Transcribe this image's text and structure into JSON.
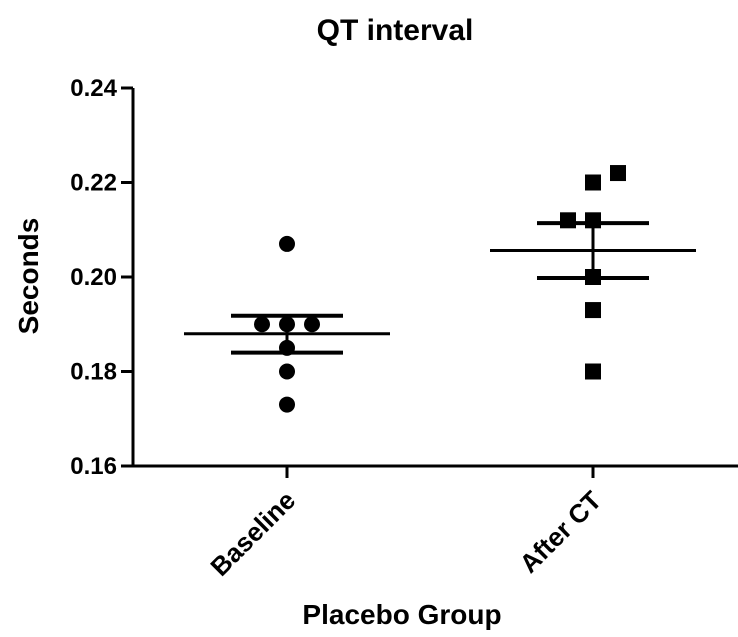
{
  "chart_data": {
    "type": "scatter",
    "title": "QT interval",
    "xlabel": "Placebo Group",
    "ylabel": "Seconds",
    "ylim": [
      0.16,
      0.24
    ],
    "yticks": [
      "0.16",
      "0.18",
      "0.20",
      "0.22",
      "0.24"
    ],
    "categories": [
      "Baseline",
      "After CT"
    ],
    "grid": false,
    "series": [
      {
        "category": "Baseline",
        "marker": "circle",
        "points": [
          {
            "offset": 0.0,
            "y": 0.207
          },
          {
            "offset": -1.0,
            "y": 0.19
          },
          {
            "offset": 0.0,
            "y": 0.19
          },
          {
            "offset": 1.0,
            "y": 0.19
          },
          {
            "offset": 0.0,
            "y": 0.185
          },
          {
            "offset": 0.0,
            "y": 0.18
          },
          {
            "offset": 0.0,
            "y": 0.173
          }
        ],
        "mean": 0.188,
        "error_high": 0.1918,
        "error_low": 0.184
      },
      {
        "category": "After CT",
        "marker": "square",
        "points": [
          {
            "offset": 0.0,
            "y": 0.22
          },
          {
            "offset": 1.0,
            "y": 0.222
          },
          {
            "offset": -1.0,
            "y": 0.212
          },
          {
            "offset": 0.0,
            "y": 0.212
          },
          {
            "offset": 0.0,
            "y": 0.2
          },
          {
            "offset": 0.0,
            "y": 0.193
          },
          {
            "offset": 0.0,
            "y": 0.18
          }
        ],
        "mean": 0.2056,
        "error_high": 0.2114,
        "error_low": 0.1998
      }
    ]
  }
}
